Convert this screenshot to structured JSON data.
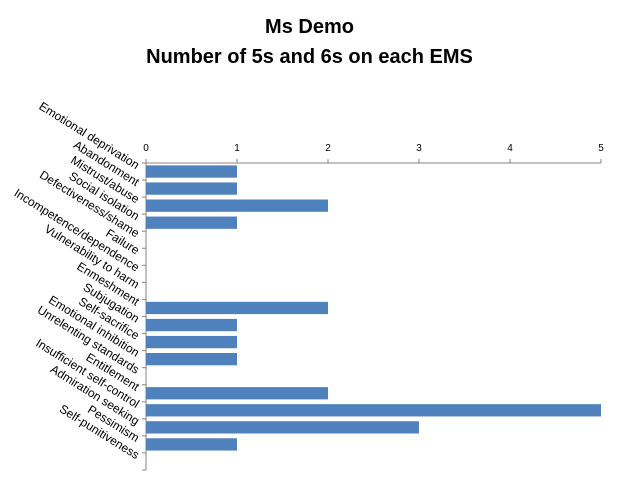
{
  "chart_data": {
    "type": "bar",
    "orientation": "horizontal",
    "title_lines": [
      "Ms Demo",
      "Number of 5s and 6s on each EMS"
    ],
    "categories": [
      "Emotional deprivation",
      "Abandonment",
      "Mistrust/abuse",
      "Social isolation",
      "Defectiveness/shame",
      "Failure",
      "Incompetence/dependence",
      "Vulnerability to harm",
      "Enmeshment",
      "Subjugation",
      "Self-sacrifice",
      "Emotional inhibition",
      "Unrelenting standards",
      "Entitlement",
      "Insufficient self-control",
      "Admiration seeking",
      "Pessimism",
      "Self-punitiveness"
    ],
    "values": [
      1,
      1,
      2,
      1,
      0,
      0,
      0,
      0,
      2,
      1,
      1,
      1,
      0,
      2,
      5,
      3,
      1,
      0
    ],
    "xlim": [
      0,
      5
    ],
    "xticks": [
      0,
      1,
      2,
      3,
      4,
      5
    ],
    "x_axis_position": "top",
    "gridlines": false,
    "legend": "none",
    "bar_color": "#4F81BD"
  }
}
